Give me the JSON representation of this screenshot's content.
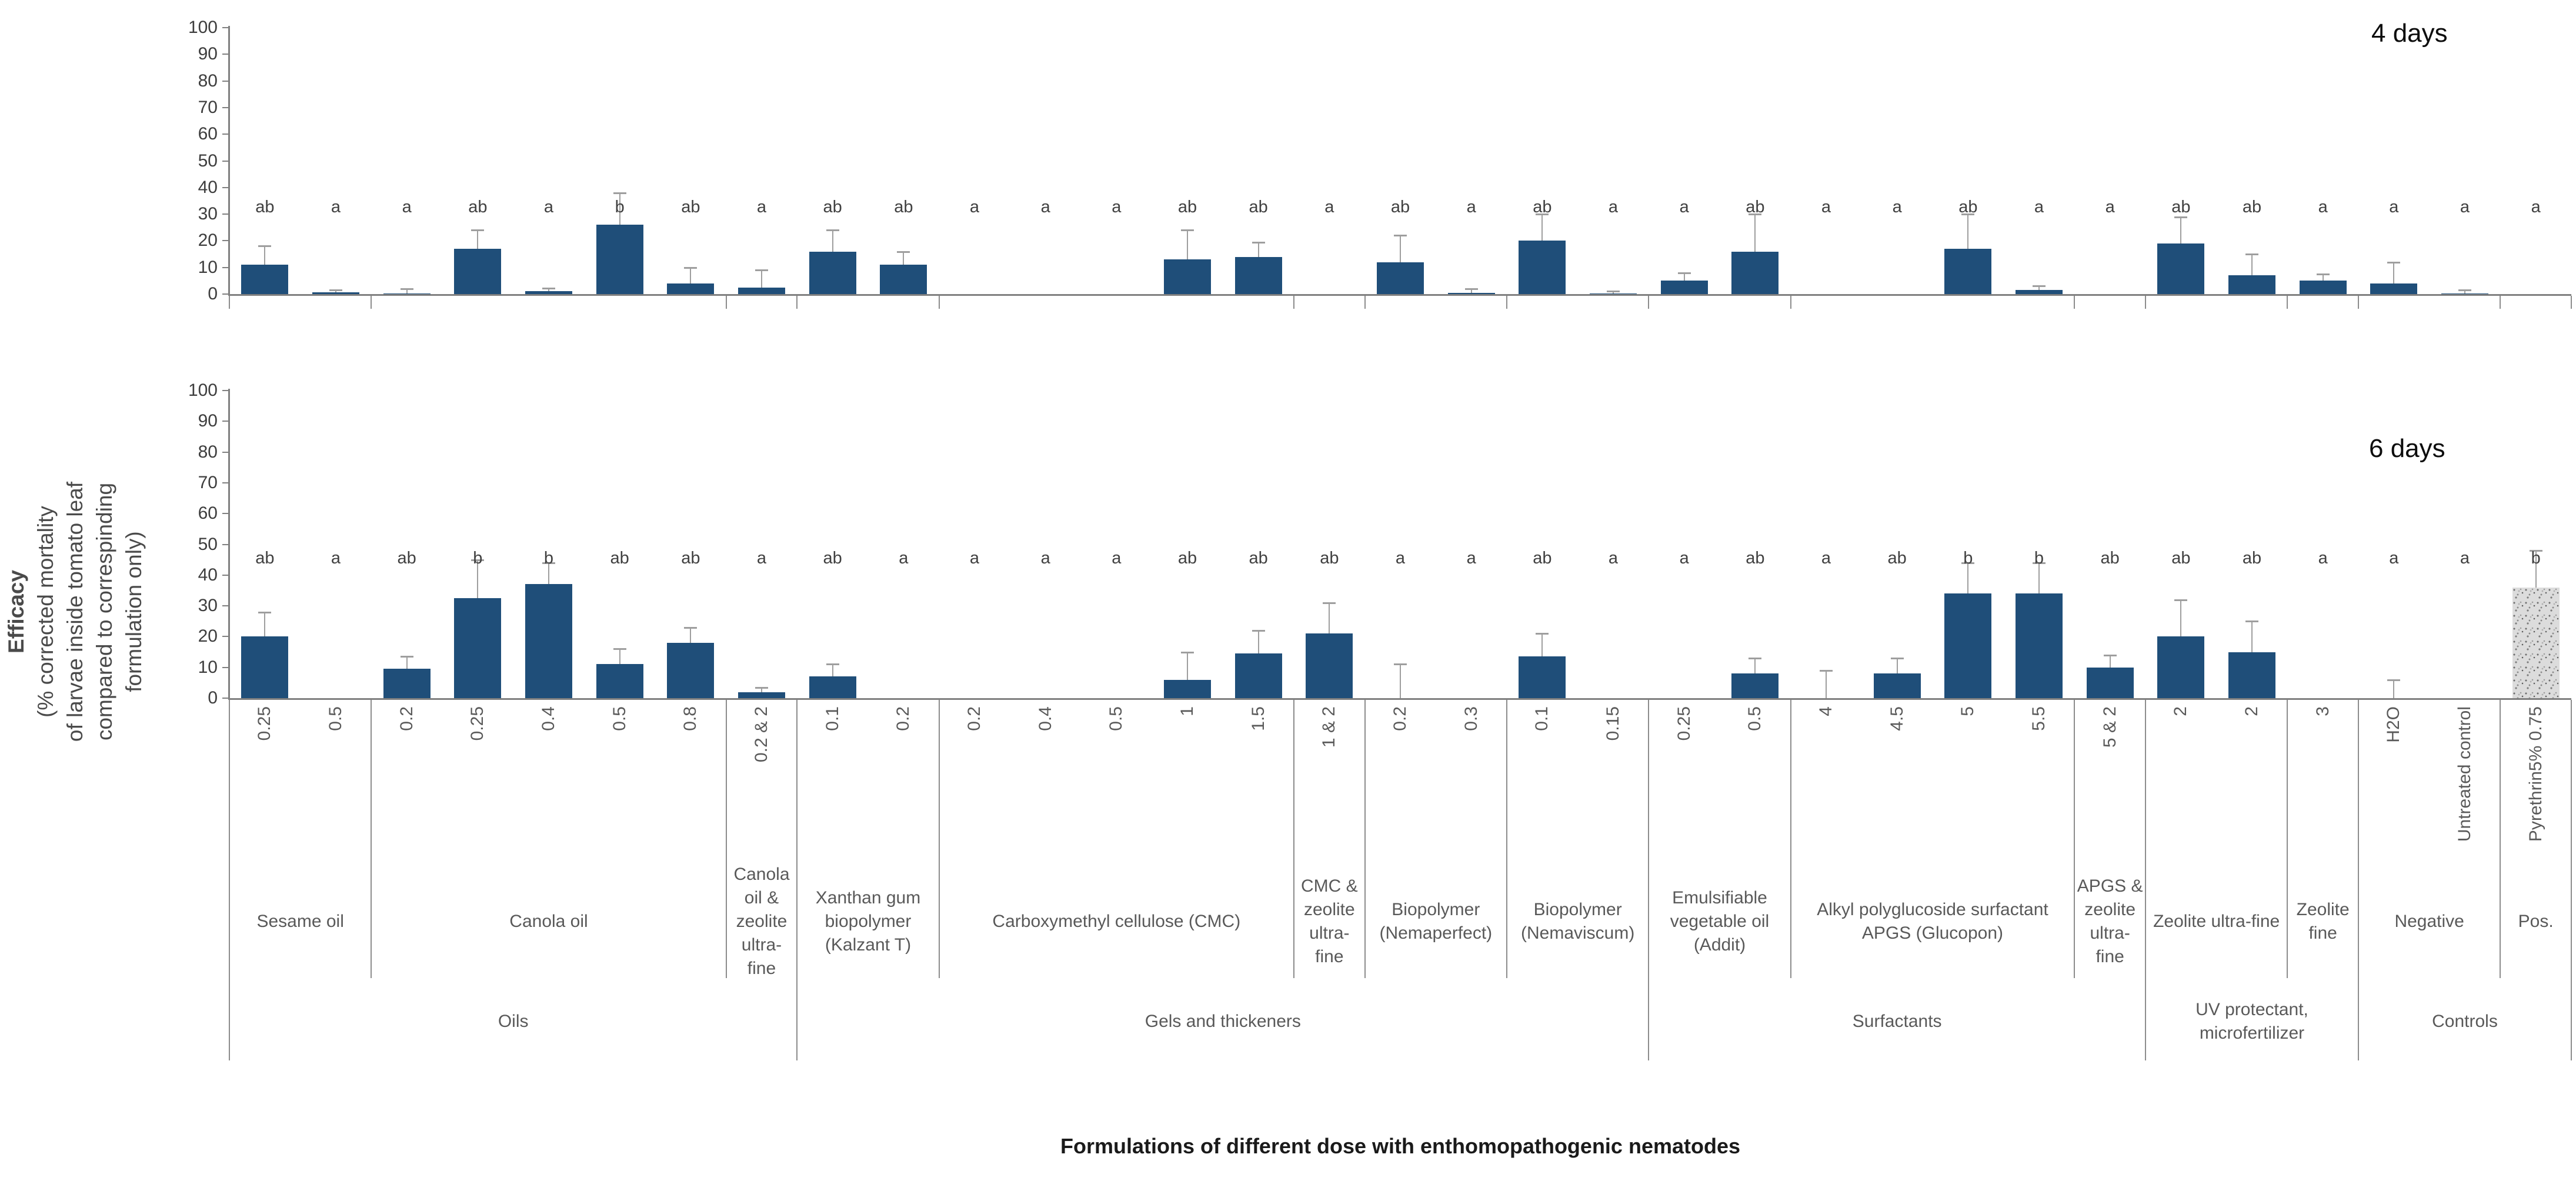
{
  "chart_data": {
    "type": "bar",
    "xlabel": "Formulations of different dose with enthomopathogenic nematodes",
    "ylabel_lines": [
      "Efficacy",
      "(% corrected mortality",
      "of larvae inside tomato leaf",
      "compared to correspinding",
      "formulation only)"
    ],
    "ylim": [
      0,
      100
    ],
    "yticks": [
      0,
      10,
      20,
      30,
      40,
      50,
      60,
      70,
      80,
      90,
      100
    ],
    "grid": false,
    "legend": "none",
    "doses": [
      "0.25",
      "0.5",
      "0.2",
      "0.25",
      "0.4",
      "0.5",
      "0.8",
      "0.2 & 2",
      "0.1",
      "0.2",
      "0.2",
      "0.4",
      "0.5",
      "1",
      "1.5",
      "1 & 2",
      "0.2",
      "0.3",
      "0.1",
      "0.15",
      "0.25",
      "0.5",
      "4",
      "4.5",
      "5",
      "5.5",
      "5 & 2",
      "2",
      "2",
      "3",
      "H2O",
      "Untreated control",
      "Pyrethrin5% 0.75"
    ],
    "formulations": [
      {
        "label": "Sesame oil",
        "bars": 2
      },
      {
        "label": "Canola oil",
        "bars": 5
      },
      {
        "label": "Canola oil & zeolite ultra- fine",
        "bars": 1
      },
      {
        "label": "Xanthan gum biopolymer (Kalzant T)",
        "bars": 2
      },
      {
        "label": "Carboxymethyl cellulose (CMC)",
        "bars": 5
      },
      {
        "label": "CMC & zeolite ultra- fine",
        "bars": 1
      },
      {
        "label": "Biopolymer (Nemaperfect)",
        "bars": 2
      },
      {
        "label": "Biopolymer (Nemaviscum)",
        "bars": 2
      },
      {
        "label": "Emulsifiable vegetable oil (Addit)",
        "bars": 2
      },
      {
        "label": "Alkyl polyglucoside surfactant APGS (Glucopon)",
        "bars": 4
      },
      {
        "label": "APGS & zeolite ultra- fine",
        "bars": 1
      },
      {
        "label": "Zeolite ultra-fine",
        "bars": 2
      },
      {
        "label": "Zeolite fine",
        "bars": 1
      },
      {
        "label": "Negative",
        "bars": 2
      },
      {
        "label": "Pos.",
        "bars": 1
      }
    ],
    "supergroups": [
      {
        "label": "Oils",
        "bars": 8
      },
      {
        "label": "Gels and thickeners",
        "bars": 12
      },
      {
        "label": "Surfactants",
        "bars": 7
      },
      {
        "label": "UV protectant, microfertilizer",
        "bars": 3
      },
      {
        "label": "Controls",
        "bars": 3
      }
    ],
    "panels": [
      {
        "title": "4 days",
        "values": [
          11,
          0.6,
          0.2,
          17,
          1,
          26,
          4,
          2.5,
          16,
          11,
          0,
          0,
          0,
          13,
          14,
          0,
          12,
          0.5,
          20,
          0.3,
          5,
          16,
          0,
          0,
          17,
          1.5,
          0,
          19,
          7,
          5,
          4,
          0.3,
          0
        ],
        "err_up": [
          7,
          0.9,
          1.8,
          7,
          1.2,
          12,
          6,
          6.5,
          8,
          5,
          0,
          0,
          0,
          11,
          5.5,
          0,
          10,
          1.5,
          10,
          0.9,
          3,
          14,
          0,
          0,
          13,
          1.5,
          0,
          10,
          8,
          2.5,
          8,
          1.2,
          0
        ],
        "letters": [
          "ab",
          "a",
          "a",
          "ab",
          "a",
          "b",
          "ab",
          "a",
          "ab",
          "ab",
          "a",
          "a",
          "a",
          "ab",
          "ab",
          "a",
          "ab",
          "a",
          "ab",
          "a",
          "a",
          "ab",
          "a",
          "a",
          "ab",
          "a",
          "a",
          "ab",
          "ab",
          "a",
          "a",
          "a",
          "a"
        ]
      },
      {
        "title": "6 days",
        "values": [
          20,
          0,
          9.5,
          32.5,
          37,
          11,
          18,
          2,
          7,
          0,
          0,
          0,
          0,
          6,
          14.5,
          21,
          0,
          0,
          13.5,
          0,
          0,
          8,
          0,
          8,
          34,
          34,
          10,
          20,
          15,
          0,
          0,
          0,
          36
        ],
        "err_up": [
          8,
          0,
          4,
          12.5,
          7,
          5,
          5,
          1.5,
          4,
          0,
          0,
          0,
          0,
          9,
          7.5,
          10,
          11,
          0,
          7.5,
          0,
          0,
          5,
          9,
          5,
          10,
          10,
          4,
          12,
          10,
          0,
          6,
          0,
          12
        ],
        "letters": [
          "ab",
          "a",
          "ab",
          "b",
          "b",
          "ab",
          "ab",
          "a",
          "ab",
          "a",
          "a",
          "a",
          "a",
          "ab",
          "ab",
          "ab",
          "a",
          "a",
          "ab",
          "a",
          "a",
          "ab",
          "a",
          "ab",
          "b",
          "b",
          "ab",
          "ab",
          "ab",
          "a",
          "a",
          "a",
          "b"
        ]
      }
    ],
    "textured_slot": 32,
    "colors": {
      "bar": "#1F4E79",
      "error_bar": "#9e9e9e",
      "axis": "#808080",
      "group_text": "#595959",
      "letter_text": "#404040",
      "pos_bar_fill": "#dcdcdc"
    }
  }
}
